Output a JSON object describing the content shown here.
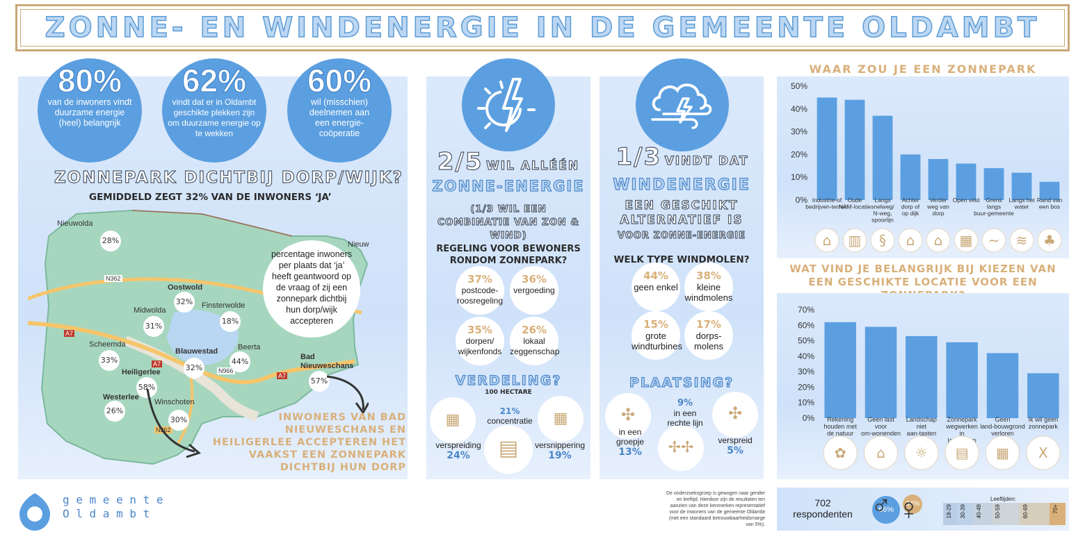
{
  "title": "ZONNE- EN WINDENERGIE IN DE GEMEENTE OLDAMBT",
  "stats": [
    {
      "value": "80%",
      "text": "van de inwoners vindt duurzame energie (heel) belangrijk"
    },
    {
      "value": "62%",
      "text": "vindt dat er in Oldambt geschikte plekken zijn om duurzame energie op te wekken"
    },
    {
      "value": "60%",
      "text": "wil (misschien) deelnemen aan een energie-coöperatie"
    }
  ],
  "map_section": {
    "heading": "ZONNEPARK DICHTBIJ DORP/WIJK?",
    "subheading": "GEMIDDELD ZEGT 32% VAN DE INWONERS ‘JA’",
    "note": "percentage inwoners per plaats dat ‘ja’ heeft geantwoord op de vraag of zij een zonnepark dichtbij hun dorp/wijk accepteren",
    "callout": "INWONERS VAN BAD NIEUWESCHANS EN HEILIGERLEE ACCEPTEREN HET VAAKST EEN ZONNEPARK DICHTBIJ HUN DORP",
    "towns": [
      "Nieuwolda",
      "Nieuw",
      "Oostwold",
      "Midwolda",
      "Finsterwolde",
      "Scheemda",
      "Blauwestad",
      "Beerta",
      "Bad Nieuweschans",
      "Heiligerlee",
      "Westerlee",
      "Winschoten"
    ],
    "roads": [
      "N362",
      "A7",
      "A7",
      "N966",
      "A7",
      "N362"
    ],
    "percentages": [
      {
        "place": "Nieuwolda",
        "value": "28%"
      },
      {
        "place": "Oostwold",
        "value": "32%"
      },
      {
        "place": "Midwolda",
        "value": "31%"
      },
      {
        "place": "Finsterwolde",
        "value": "18%"
      },
      {
        "place": "Scheemda",
        "value": "33%"
      },
      {
        "place": "Blauwestad",
        "value": "32%"
      },
      {
        "place": "Beerta",
        "value": "44%"
      },
      {
        "place": "Bad Nieuweschans",
        "value": "57%"
      },
      {
        "place": "Heiligerlee",
        "value": "58%"
      },
      {
        "place": "Westerlee",
        "value": "26%"
      },
      {
        "place": "Winschoten",
        "value": "30%"
      }
    ]
  },
  "sun_panel": {
    "fraction": "2/5",
    "line1": "WIL ALLÉÉN",
    "line2": "ZONNE-ENERGIE",
    "line3": "(1/3 WIL EEN COMBINATIE VAN ZON & WIND)",
    "regeling_heading": "REGELING VOOR BEWONERS RONDOM ZONNEPARK?",
    "regeling": [
      {
        "pct": "37%",
        "label": "postcode-roosregeling"
      },
      {
        "pct": "36%",
        "label": "vergoeding"
      },
      {
        "pct": "35%",
        "label": "dorpen/ wijkenfonds"
      },
      {
        "pct": "26%",
        "label": "lokaal zeggenschap"
      }
    ],
    "verdeling_heading": "VERDELING?",
    "verdeling_sub": "100 HECTARE",
    "verdeling": [
      {
        "label": "verspreiding",
        "pct": "24%"
      },
      {
        "label": "concentratie",
        "pct": "21%"
      },
      {
        "label": "versnippering",
        "pct": "19%"
      }
    ]
  },
  "wind_panel": {
    "fraction": "1/3",
    "line1": "VINDT DAT",
    "line2": "WINDENERGIE",
    "line3": "EEN GESCHIKT ALTERNATIEF IS",
    "line4": "VOOR ZONNE-ENERGIE",
    "type_heading": "WELK TYPE WINDMOLEN?",
    "types": [
      {
        "pct": "44%",
        "label": "geen enkel"
      },
      {
        "pct": "38%",
        "label": "kleine windmolens"
      },
      {
        "pct": "15%",
        "label": "grote windturbines"
      },
      {
        "pct": "17%",
        "label": "dorps-molens"
      }
    ],
    "plaatsing_heading": "PLAATSING?",
    "plaatsing": [
      {
        "label": "in een groepje",
        "pct": "13%"
      },
      {
        "label": "in een rechte lijn",
        "pct": "9%"
      },
      {
        "label": "verspreid",
        "pct": "5%"
      }
    ]
  },
  "chart1_heading": "WAAR ZOU JE EEN ZONNEPARK WILLEN?",
  "chart2_heading": "WAT VIND JE BELANGRIJK BIJ KIEZEN VAN EEN GESCHIKTE LOCATIE VOOR EEN ZONNEPARK?",
  "chart_data": [
    {
      "type": "bar",
      "title": "WAAR ZOU JE EEN ZONNEPARK WILLEN?",
      "categories": [
        "Industrie-of bedrijven-terrein",
        "Oude NAM-locatie",
        "Langs snelweg/ N-weg, spoorlijn",
        "Achter dorp of op dijk",
        "Verder weg van dorp",
        "Open veld",
        "Grens langs buur-gemeente",
        "Langs het water",
        "Rand van een bos"
      ],
      "values": [
        45,
        44,
        37,
        20,
        18,
        16,
        14,
        12,
        8
      ],
      "ylim": [
        0,
        50
      ],
      "yticks": [
        "0%",
        "10%",
        "20%",
        "30%",
        "40%",
        "50%"
      ],
      "color": "#5b9fe0",
      "icons": [
        "factory-icon",
        "industry-icon",
        "road-icon",
        "village-icon",
        "houses-icon",
        "field-icon",
        "border-icon",
        "water-icon",
        "forest-icon"
      ]
    },
    {
      "type": "bar",
      "title": "WAT VIND JE BELANGRIJK BIJ KIEZEN VAN EEN GESCHIKTE LOCATIE VOOR EEN ZONNEPARK?",
      "categories": [
        "Rekening houden met de natuur",
        "Geen last voor om-wonenden",
        "Landschap niet aan-tasten",
        "Zonnepark wegwerken in landschap",
        "Geen land-bouwgrond verloren",
        "Ik wil geen zonnepark"
      ],
      "values": [
        62,
        59,
        53,
        49,
        42,
        29
      ],
      "ylim": [
        0,
        70
      ],
      "yticks": [
        "0%",
        "10%",
        "20%",
        "30%",
        "40%",
        "50%",
        "60%",
        "70%"
      ],
      "color": "#5b9fe0",
      "icons": [
        "nature-hands-icon",
        "house-icon",
        "landscape-icon",
        "hidden-park-icon",
        "farmland-icon",
        "x-icon"
      ]
    }
  ],
  "footer": {
    "logo_line1": "g e m e e n t e",
    "logo_line2": "O l d a m b t",
    "note": "De onderzoeksgroep is gewogen naar gender en leeftijd. Hierdoor zijn de resultaten ten aanzien van deze kenmerken representatief voor de inwoners van de gemeente Oldambt (met een standaard betrouwbaarheidsmarge van 5%).",
    "respondents": "702",
    "respondents_label": "respondenten",
    "male_pct": "66%",
    "female_pct": "34%",
    "age_title": "Leeftijden:",
    "ages": [
      "18-29",
      "30-39",
      "40-49",
      "50-59",
      "60-69",
      "70+"
    ]
  }
}
